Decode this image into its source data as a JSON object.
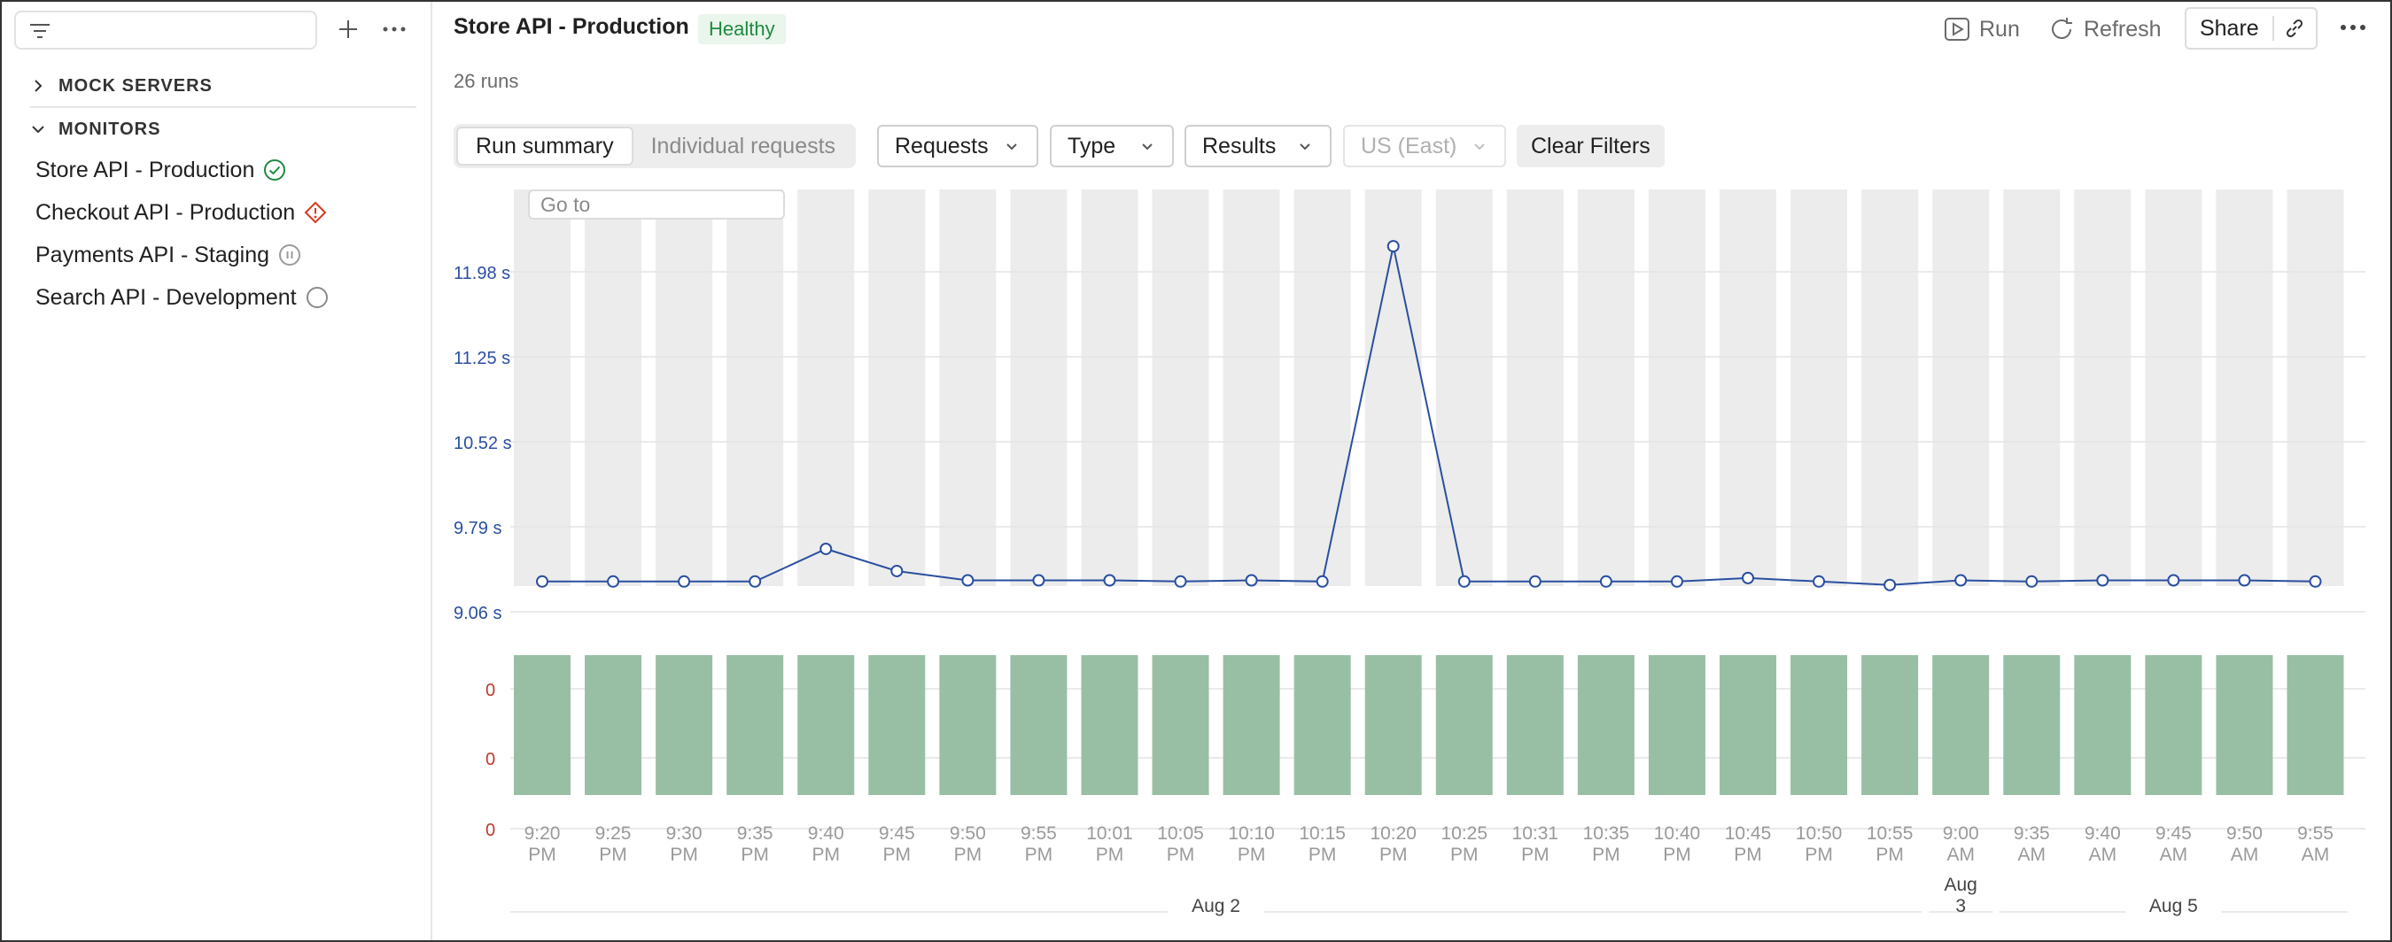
{
  "sidebar": {
    "sections": [
      {
        "label": "MOCK SERVERS",
        "expanded": false
      },
      {
        "label": "MONITORS",
        "expanded": true
      }
    ],
    "monitors": [
      {
        "label": "Store API - Production",
        "status_icon": "check-circle-icon",
        "status_color": "#1f8a3f"
      },
      {
        "label": "Checkout API - Production",
        "status_icon": "warning-diamond-icon",
        "status_color": "#d9381e"
      },
      {
        "label": "Payments API - Staging",
        "status_icon": "pause-circle-icon",
        "status_color": "#9a9a9a"
      },
      {
        "label": "Search API - Development",
        "status_icon": "empty-circle-icon",
        "status_color": "#8a8a8a"
      }
    ]
  },
  "header": {
    "title": "Store API - Production",
    "status_badge": "Healthy",
    "runs_count": "26 runs",
    "run_label": "Run",
    "refresh_label": "Refresh",
    "share_label": "Share"
  },
  "toolbar": {
    "tabs": [
      "Run summary",
      "Individual requests"
    ],
    "active_tab": "Run summary",
    "filters": [
      {
        "label": "Requests",
        "disabled": false
      },
      {
        "label": "Type",
        "disabled": false
      },
      {
        "label": "Results",
        "disabled": false
      },
      {
        "label": "US (East)",
        "disabled": true
      }
    ],
    "clear_filters": "Clear Filters",
    "goto_placeholder": "Go to"
  },
  "colors": {
    "line": "#2a4fa0",
    "bar_bg": "#ececec",
    "pass_bar": "#98bfa4",
    "y_label_blue": "#2a4fa0",
    "y_label_red": "#c0392b",
    "healthy_bg": "#eaf5ec"
  },
  "chart_data": {
    "type": "line",
    "title": "",
    "y_ticks": [
      9.06,
      9.79,
      10.52,
      11.25,
      11.98
    ],
    "y_tick_labels": [
      "9.06 s",
      "9.79 s",
      "10.52 s",
      "11.25 s",
      "11.98 s"
    ],
    "result_y_labels": [
      "0",
      "0",
      "0"
    ],
    "categories": [
      "9:20 PM",
      "9:25 PM",
      "9:30 PM",
      "9:35 PM",
      "9:40 PM",
      "9:45 PM",
      "9:50 PM",
      "9:55 PM",
      "10:01 PM",
      "10:05 PM",
      "10:10 PM",
      "10:15 PM",
      "10:20 PM",
      "10:25 PM",
      "10:31 PM",
      "10:35 PM",
      "10:40 PM",
      "10:45 PM",
      "10:50 PM",
      "10:55 PM",
      "9:00 AM",
      "9:35 AM",
      "9:40 AM",
      "9:45 AM",
      "9:50 AM",
      "9:55 AM"
    ],
    "series": [
      {
        "values": [
          9.32,
          9.32,
          9.32,
          9.32,
          9.6,
          9.41,
          9.33,
          9.33,
          9.33,
          9.32,
          9.33,
          9.32,
          12.2,
          9.32,
          9.32,
          9.32,
          9.32,
          9.35,
          9.32,
          9.29,
          9.33,
          9.32,
          9.33,
          9.33,
          9.33,
          9.32
        ]
      }
    ],
    "result_bars": "all-passed",
    "date_groups": [
      {
        "label": "Aug 2",
        "from": 0,
        "to": 19
      },
      {
        "label": "Aug 3",
        "from": 20,
        "to": 20
      },
      {
        "label": "Aug 5",
        "from": 21,
        "to": 25
      }
    ]
  }
}
